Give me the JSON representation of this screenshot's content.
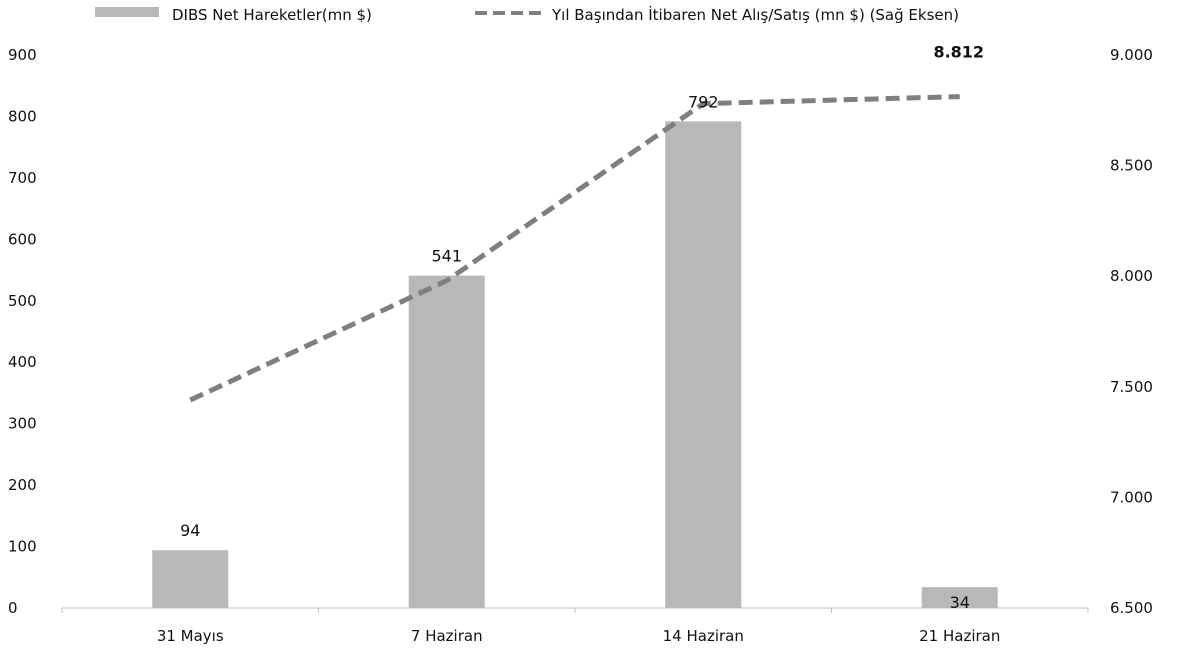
{
  "chart_data": {
    "type": "bar",
    "categories": [
      "31 Mayıs",
      "7 Haziran",
      "14 Haziran",
      "21 Haziran"
    ],
    "series": [
      {
        "name": "DIBS Net Hareketler(mn $)",
        "type": "bar",
        "axis": "left",
        "values": [
          94,
          541,
          792,
          34
        ],
        "labels": [
          "94",
          "541",
          "792",
          "34"
        ],
        "color": "#b8b8b8"
      },
      {
        "name": "Yıl Başından İtibaren Net Alış/Satış (mn $) (Sağ Eksen)",
        "type": "line",
        "style": "dashed",
        "axis": "right",
        "values": [
          7440,
          7980,
          8780,
          8812
        ],
        "labels": [
          "",
          "",
          "",
          "8.812"
        ],
        "color": "#7f7f7f"
      }
    ],
    "y_left": {
      "ylim": [
        0,
        900
      ],
      "ticks": [
        "0",
        "100",
        "200",
        "300",
        "400",
        "500",
        "600",
        "700",
        "800",
        "900"
      ]
    },
    "y_right": {
      "ylim": [
        6500,
        9000
      ],
      "ticks": [
        "6.500",
        "7.000",
        "7.500",
        "8.000",
        "8.500",
        "9.000"
      ]
    },
    "legend_position": "top",
    "grid": false
  }
}
